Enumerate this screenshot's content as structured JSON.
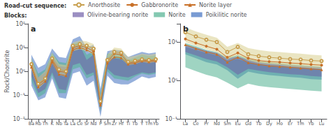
{
  "chart_data": [
    {
      "type": "line",
      "title": "a",
      "categories": [
        "Ba",
        "Rb",
        "Th",
        "K",
        "Nb",
        "Ta",
        "La",
        "Ce",
        "Sr",
        "Nd",
        "P",
        "Sm",
        "Zr",
        "Hf",
        "Ti",
        "Tb",
        "Y",
        "Tm",
        "Yb"
      ],
      "ylabel": "Rock/Chondrite",
      "log": "y",
      "ylim": [
        0.01,
        100
      ],
      "yticks": [
        {
          "value": 0.01,
          "label": "10⁻²"
        },
        {
          "value": 0.1,
          "label": "10⁻¹"
        },
        {
          "value": 1,
          "label": "10⁰"
        },
        {
          "value": 10,
          "label": "10¹"
        },
        {
          "value": 100,
          "label": "10²"
        }
      ],
      "grid": false,
      "legend": "top",
      "legend_titles": [
        "Road-cut sequence:",
        "Blocks:"
      ],
      "series": [
        {
          "name": "Norite layer",
          "color": "#c87028",
          "marker": "triangle",
          "values": [
            1.5,
            0.22,
            0.38,
            2.5,
            0.75,
            0.65,
            8.0,
            10.0,
            8.0,
            5.5,
            0.038,
            2.2,
            4.0,
            3.7,
            2.0,
            2.2,
            2.7,
            2.5,
            2.7
          ]
        },
        {
          "name": "Gabbronorite",
          "color": "#c87028",
          "marker": "circle",
          "values": [
            1.8,
            0.28,
            0.45,
            3.0,
            1.0,
            0.9,
            10.0,
            12.0,
            10.0,
            7.0,
            0.045,
            2.5,
            5.5,
            5.0,
            2.2,
            2.5,
            3.0,
            2.8,
            3.0
          ]
        },
        {
          "name": "Anorthosite",
          "color": "#c8a050",
          "marker": "open_circle",
          "values": [
            2.0,
            0.3,
            0.5,
            3.5,
            1.2,
            1.0,
            12.0,
            14.0,
            12.0,
            9.0,
            0.055,
            3.0,
            6.5,
            6.0,
            2.5,
            2.8,
            3.2,
            3.0,
            3.2
          ]
        }
      ],
      "bands": [
        {
          "name": "Poikilitic norite",
          "color": "#4070c0",
          "low": [
            0.25,
            0.06,
            0.08,
            0.5,
            0.08,
            0.07,
            0.8,
            1.0,
            0.25,
            0.4,
            0.012,
            0.65,
            0.32,
            0.28,
            0.28,
            0.4,
            0.6,
            0.5,
            0.58
          ],
          "high": [
            5.0,
            1.4,
            2.0,
            9.0,
            4.0,
            3.6,
            22.0,
            30.0,
            10.0,
            13.0,
            0.18,
            7.0,
            8.0,
            7.5,
            4.0,
            5.2,
            6.5,
            5.6,
            6.2
          ]
        },
        {
          "name": "Norite",
          "color": "#50b090",
          "low": [
            0.4,
            0.08,
            0.12,
            0.7,
            0.12,
            0.12,
            1.2,
            1.5,
            0.5,
            0.7,
            0.02,
            1.0,
            0.5,
            0.45,
            0.4,
            0.6,
            0.8,
            0.7,
            0.8
          ],
          "high": [
            3.5,
            0.8,
            1.2,
            6.0,
            2.5,
            2.2,
            14.0,
            18.0,
            5.0,
            7.0,
            0.12,
            5.5,
            5.5,
            5.0,
            3.0,
            3.8,
            5.0,
            4.3,
            4.7
          ]
        },
        {
          "name": "Olivine-bearing norite",
          "color": "#7060a8",
          "low": [
            0.6,
            0.12,
            0.18,
            0.9,
            0.18,
            0.16,
            1.8,
            2.2,
            0.7,
            0.9,
            0.025,
            1.3,
            0.7,
            0.6,
            0.55,
            0.7,
            0.9,
            0.8,
            0.9
          ],
          "high": [
            2.8,
            0.55,
            0.9,
            4.5,
            1.7,
            1.5,
            10.0,
            13.0,
            3.0,
            5.0,
            0.09,
            4.0,
            3.5,
            3.2,
            2.0,
            2.8,
            3.5,
            3.1,
            3.4
          ]
        },
        {
          "color": "#d8d090",
          "low": [
            1.2,
            0.18,
            0.35,
            2.2,
            0.7,
            0.6,
            7.0,
            8.5,
            7.0,
            5.0,
            0.035,
            2.0,
            4.0,
            3.5,
            1.8,
            2.0,
            2.5,
            2.2,
            2.5
          ],
          "high": [
            3.5,
            0.55,
            1.0,
            6.0,
            2.0,
            1.8,
            16.0,
            20.0,
            18.0,
            14.0,
            0.09,
            5.0,
            10.0,
            9.0,
            4.0,
            4.5,
            5.5,
            5.0,
            5.5
          ]
        }
      ]
    },
    {
      "type": "line",
      "title": "b",
      "categories": [
        "La",
        "Ce",
        "Pr",
        "Nd",
        "Sm",
        "Eu",
        "Gd",
        "Tb",
        "Dy",
        "Ho",
        "Er",
        "Tm",
        "Yb",
        "Lu"
      ],
      "log": "y",
      "ylim": [
        0.1,
        30
      ],
      "yticks": [
        {
          "value": 0.1,
          "label": "10⁻¹"
        },
        {
          "value": 1,
          "label": "10⁰"
        },
        {
          "value": 10,
          "label": "10¹"
        }
      ],
      "grid": false,
      "series": [
        {
          "name": "Norite layer",
          "color": "#c87028",
          "marker": "triangle",
          "values": [
            8.5,
            6.8,
            5.5,
            4.8,
            3.0,
            4.0,
            2.9,
            2.6,
            2.4,
            2.3,
            2.2,
            2.1,
            2.0,
            1.9
          ]
        },
        {
          "name": "Gabbronorite",
          "color": "#c87028",
          "marker": "circle",
          "values": [
            12.0,
            9.5,
            7.8,
            6.5,
            4.0,
            5.2,
            3.8,
            3.3,
            3.1,
            3.0,
            2.85,
            2.75,
            2.6,
            2.5
          ]
        },
        {
          "name": "Anorthosite",
          "color": "#c8a050",
          "marker": "open_circle",
          "values": [
            18.0,
            14.0,
            11.5,
            10.0,
            5.5,
            7.5,
            4.8,
            4.3,
            4.0,
            3.8,
            3.6,
            3.5,
            3.3,
            3.2
          ]
        }
      ],
      "bands": [
        {
          "name": "Poikilitic norite",
          "color": "#4070c0",
          "low": [
            4.8,
            3.8,
            3.0,
            2.6,
            1.85,
            1.1,
            1.7,
            1.5,
            1.38,
            1.3,
            1.22,
            1.17,
            1.08,
            1.05
          ],
          "high": [
            7.5,
            6.2,
            5.2,
            4.5,
            3.3,
            3.6,
            3.0,
            2.6,
            2.4,
            2.28,
            2.18,
            2.1,
            2.0,
            1.9
          ]
        },
        {
          "name": "Norite",
          "color": "#50b090",
          "low": [
            2.2,
            1.75,
            1.4,
            1.2,
            0.88,
            0.62,
            0.82,
            0.72,
            0.67,
            0.63,
            0.6,
            0.57,
            0.54,
            0.52
          ],
          "high": [
            9.5,
            7.8,
            6.3,
            5.5,
            4.0,
            4.6,
            3.8,
            3.2,
            2.95,
            2.8,
            2.65,
            2.55,
            2.4,
            2.3
          ]
        },
        {
          "name": "Olivine-bearing norite",
          "color": "#7060a8",
          "low": [
            5.5,
            4.5,
            3.6,
            3.1,
            2.2,
            1.4,
            2.0,
            1.8,
            1.65,
            1.55,
            1.45,
            1.4,
            1.3,
            1.25
          ],
          "high": [
            8.5,
            7.2,
            6.0,
            5.2,
            3.8,
            4.2,
            3.5,
            3.0,
            2.8,
            2.65,
            2.5,
            2.4,
            2.3,
            2.2
          ]
        },
        {
          "color": "#d8d090",
          "low": [
            10.0,
            8.0,
            6.5,
            5.5,
            3.5,
            4.5,
            3.3,
            2.8,
            2.6,
            2.5,
            2.3,
            2.2,
            2.1,
            2.0
          ],
          "high": [
            24.0,
            19.0,
            15.5,
            13.0,
            7.5,
            9.5,
            7.0,
            6.2,
            5.7,
            5.5,
            5.2,
            5.0,
            4.7,
            4.5
          ]
        }
      ]
    }
  ]
}
